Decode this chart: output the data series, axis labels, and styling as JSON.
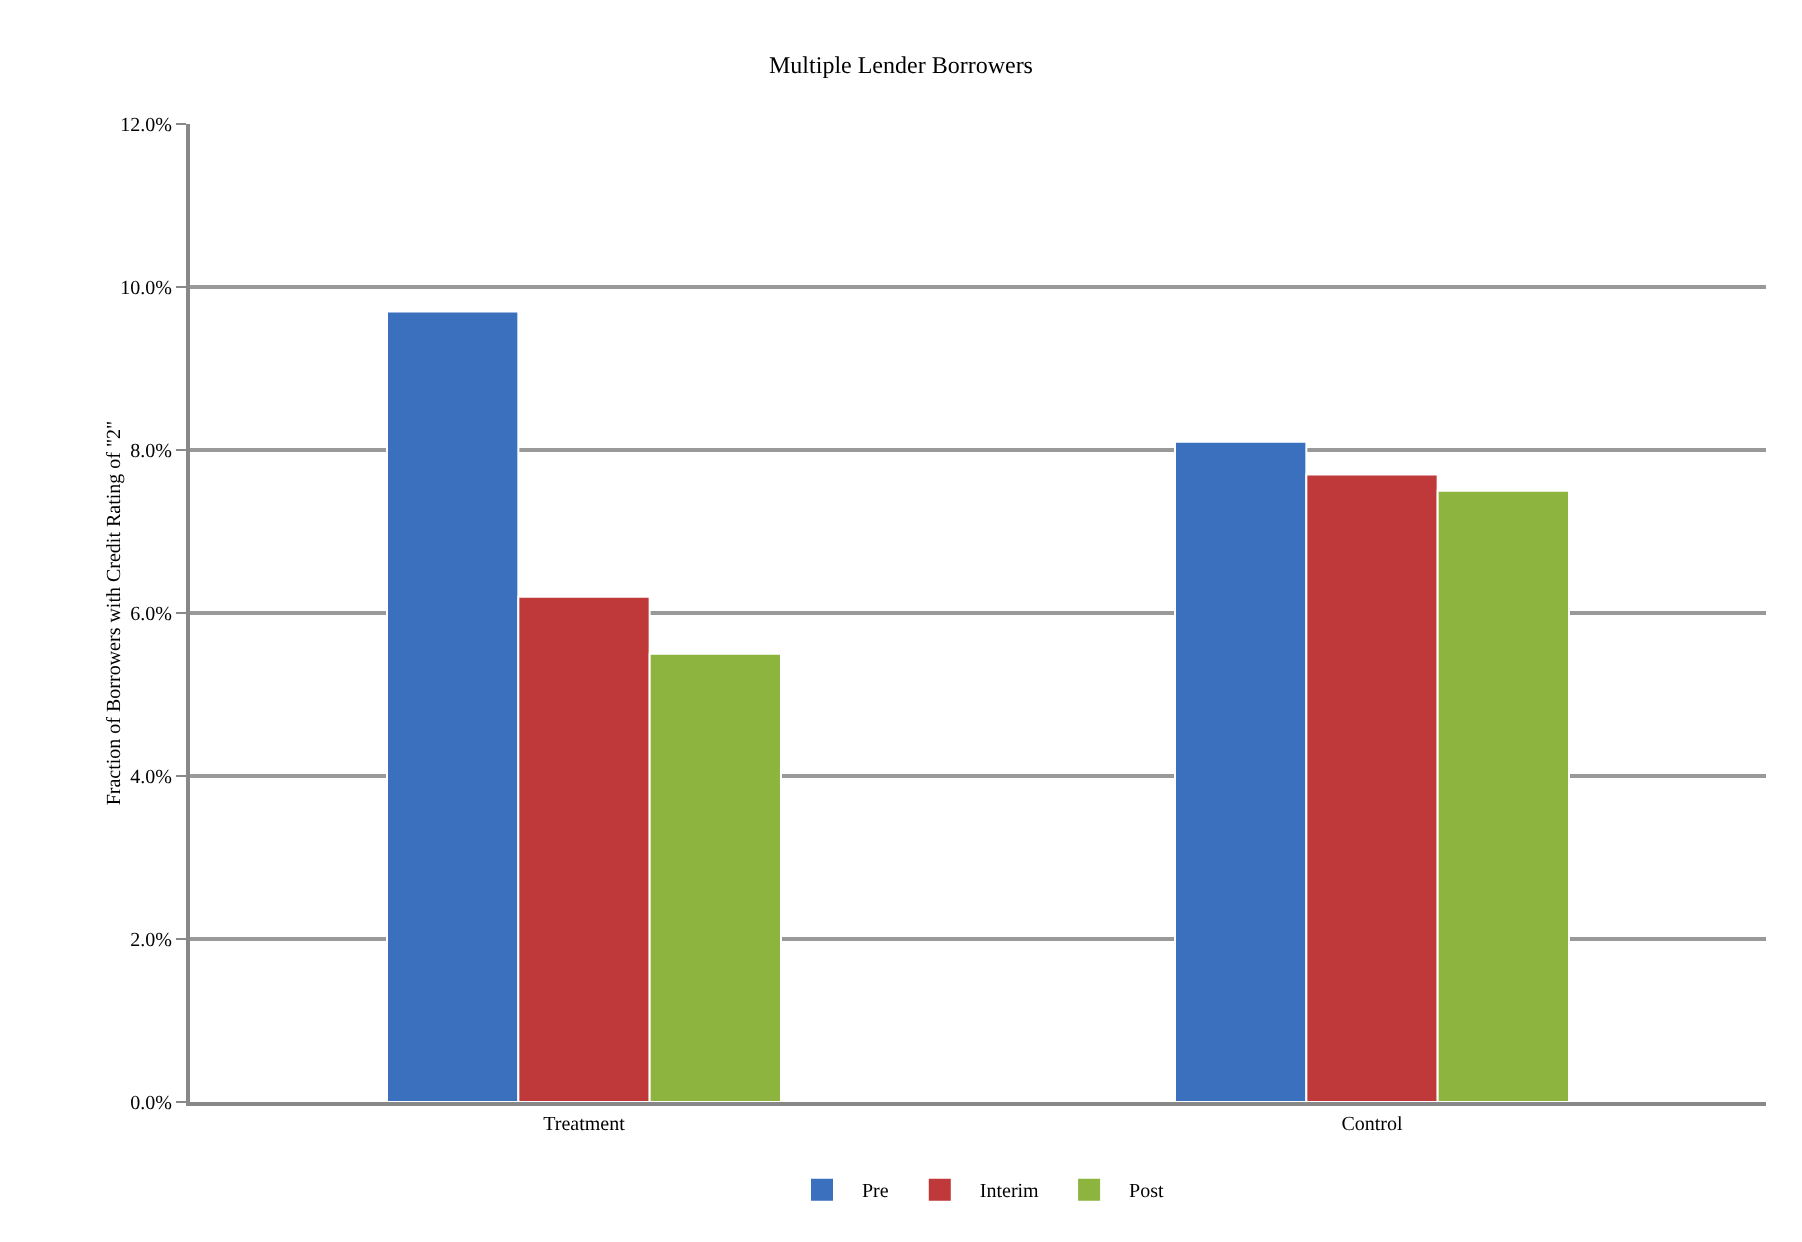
{
  "chart_data": {
    "type": "bar",
    "title": "Multiple Lender Borrowers",
    "ylabel": "Fraction of Borrowers with Credit Rating of \"2\"",
    "categories": [
      "Treatment",
      "Control"
    ],
    "series": [
      {
        "name": "Pre",
        "color": "#3a70bd",
        "values": [
          9.7,
          8.1
        ]
      },
      {
        "name": "Interim",
        "color": "#c0393a",
        "values": [
          6.2,
          7.7
        ]
      },
      {
        "name": "Post",
        "color": "#8db43f",
        "values": [
          5.5,
          7.5
        ]
      }
    ],
    "ylim": [
      0,
      12
    ],
    "yticks": [
      {
        "value": 0,
        "label": "0.0%"
      },
      {
        "value": 2,
        "label": "2.0%"
      },
      {
        "value": 4,
        "label": "4.0%"
      },
      {
        "value": 6,
        "label": "6.0%"
      },
      {
        "value": 8,
        "label": "8.0%"
      },
      {
        "value": 10,
        "label": "10.0%"
      },
      {
        "value": 12,
        "label": "12.0%"
      }
    ],
    "grid": "y",
    "legend": "bottom"
  }
}
